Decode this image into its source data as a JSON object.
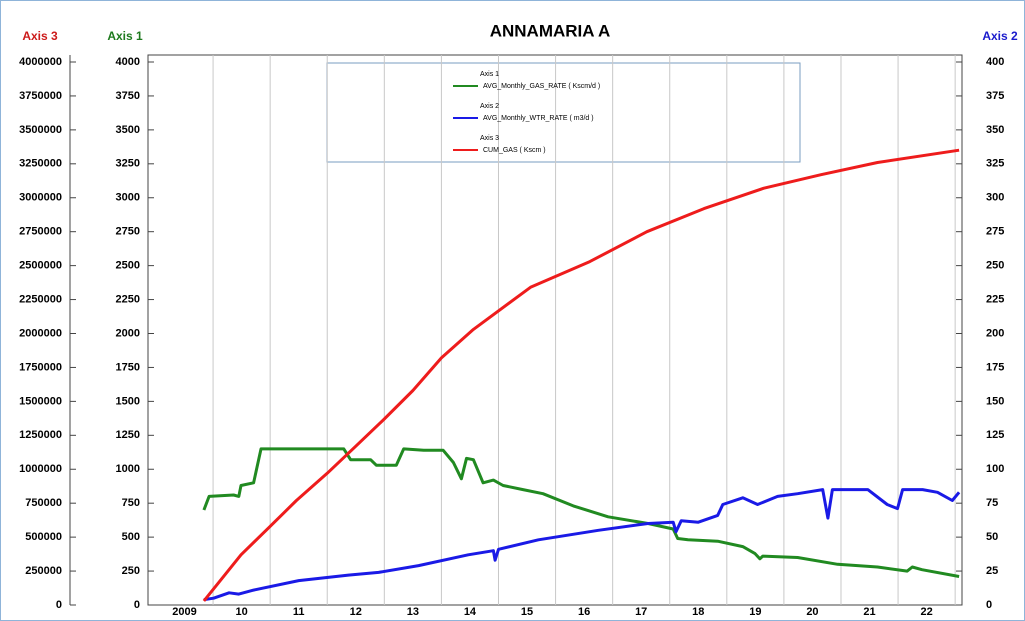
{
  "chart_data": {
    "type": "line",
    "title": "ANNAMARIA A",
    "xlim": [
      2008.86,
      2023.12
    ],
    "xticks": [
      {
        "value": 2009.5,
        "label": "2009"
      },
      {
        "value": 2010.5,
        "label": "10"
      },
      {
        "value": 2011.5,
        "label": "11"
      },
      {
        "value": 2012.5,
        "label": "12"
      },
      {
        "value": 2013.5,
        "label": "13"
      },
      {
        "value": 2014.5,
        "label": "14"
      },
      {
        "value": 2015.5,
        "label": "15"
      },
      {
        "value": 2016.5,
        "label": "16"
      },
      {
        "value": 2017.5,
        "label": "17"
      },
      {
        "value": 2018.5,
        "label": "18"
      },
      {
        "value": 2019.5,
        "label": "19"
      },
      {
        "value": 2020.5,
        "label": "20"
      },
      {
        "value": 2021.5,
        "label": "21"
      },
      {
        "value": 2022.5,
        "label": "22"
      }
    ],
    "xgrid": [
      2010,
      2011,
      2012,
      2013,
      2014,
      2015,
      2016,
      2017,
      2018,
      2019,
      2020,
      2021,
      2022,
      2023
    ],
    "axes": [
      {
        "id": "y1",
        "title": "Axis 1",
        "color": "#1e7a1e",
        "side": "left-inner",
        "lim": [
          0,
          4000
        ],
        "ticks": [
          0,
          250,
          500,
          750,
          1000,
          1250,
          1500,
          1750,
          2000,
          2250,
          2500,
          2750,
          3000,
          3250,
          3500,
          3750,
          4000
        ]
      },
      {
        "id": "y2",
        "title": "Axis 2",
        "color": "#1a1acc",
        "side": "right",
        "lim": [
          0,
          400
        ],
        "ticks": [
          0,
          25,
          50,
          75,
          100,
          125,
          150,
          175,
          200,
          225,
          250,
          275,
          300,
          325,
          350,
          375,
          400
        ]
      },
      {
        "id": "y3",
        "title": "Axis 3",
        "color": "#cc1a1a",
        "side": "left-outer",
        "lim": [
          0,
          4000000
        ],
        "ticks": [
          0,
          250000,
          500000,
          750000,
          1000000,
          1250000,
          1500000,
          1750000,
          2000000,
          2250000,
          2500000,
          2750000,
          3000000,
          3250000,
          3500000,
          3750000,
          4000000
        ]
      }
    ],
    "series": [
      {
        "name": "AVG_Monthly_GAS_RATE ( Kscm/d )",
        "color": "#218a21",
        "axis": "y1",
        "x": [
          2009.84,
          2009.93,
          2010.36,
          2010.45,
          2010.49,
          2010.71,
          2010.84,
          2012.02,
          2012.29,
          2012.41,
          2012.76,
          2012.86,
          2013.21,
          2013.34,
          2013.69,
          2014.03,
          2014.21,
          2014.35,
          2014.44,
          2014.56,
          2014.73,
          2014.91,
          2015.08,
          2015.43,
          2015.78,
          2016.31,
          2016.92,
          2017.62,
          2018.06,
          2018.14,
          2018.32,
          2018.84,
          2019.28,
          2019.49,
          2019.58,
          2019.63,
          2020.24,
          2020.94,
          2021.64,
          2022.16,
          2022.25,
          2022.42,
          2023.07
        ],
        "values": [
          700,
          800,
          810,
          800,
          880,
          900,
          1150,
          1150,
          1150,
          1070,
          1070,
          1030,
          1030,
          1150,
          1140,
          1140,
          1050,
          930,
          1080,
          1070,
          900,
          920,
          880,
          850,
          820,
          730,
          650,
          600,
          560,
          490,
          480,
          470,
          430,
          380,
          340,
          360,
          350,
          300,
          280,
          250,
          280,
          260,
          210
        ]
      },
      {
        "name": "AVG_Monthly_WTR_RATE ( m3/d )",
        "color": "#1a1ae6",
        "axis": "y2",
        "x": [
          2009.84,
          2010.01,
          2010.28,
          2010.45,
          2010.71,
          2011.5,
          2012.37,
          2012.9,
          2013.6,
          2014.47,
          2014.91,
          2014.94,
          2015.0,
          2015.7,
          2016.75,
          2017.62,
          2018.06,
          2018.11,
          2018.2,
          2018.5,
          2018.84,
          2018.93,
          2019.28,
          2019.54,
          2019.89,
          2020.24,
          2020.68,
          2020.77,
          2020.85,
          2021.47,
          2021.81,
          2021.99,
          2022.08,
          2022.43,
          2022.69,
          2022.95,
          2023.07
        ],
        "values": [
          4,
          5,
          9,
          8,
          11,
          18,
          22,
          24,
          29,
          37,
          40,
          33,
          41,
          48,
          55,
          60,
          61,
          54,
          62,
          61,
          66,
          74,
          79,
          74,
          80,
          82,
          85,
          64,
          85,
          85,
          74,
          71,
          85,
          85,
          83,
          77,
          83
        ]
      },
      {
        "name": "CUM_GAS ( Kscm )",
        "color": "#ee1c1c",
        "axis": "y3",
        "x": [
          2009.84,
          2010.49,
          2011.0,
          2011.46,
          2012.0,
          2012.5,
          2013.0,
          2013.5,
          2014.0,
          2014.56,
          2015.56,
          2016.6,
          2017.6,
          2018.6,
          2019.65,
          2020.65,
          2021.64,
          2023.07
        ],
        "values": [
          30000,
          370000,
          580000,
          770000,
          970000,
          1170000,
          1370000,
          1580000,
          1820000,
          2030000,
          2340000,
          2530000,
          2750000,
          2920000,
          3070000,
          3170000,
          3260000,
          3350000
        ]
      }
    ]
  }
}
